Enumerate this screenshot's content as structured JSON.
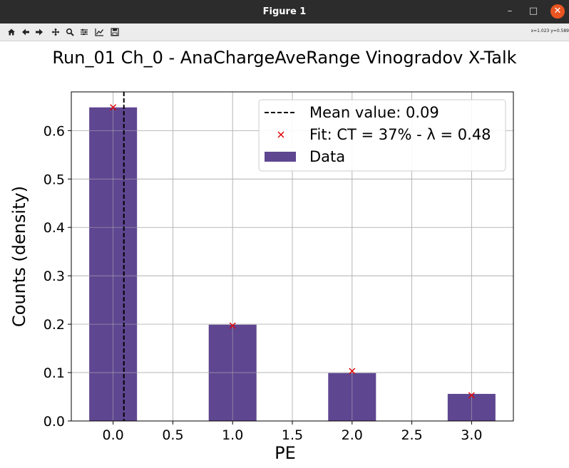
{
  "window": {
    "title": "Figure 1",
    "coords_readout": "x=1.023 y=0.589"
  },
  "toolbar": {
    "tools": [
      "home-icon",
      "back-icon",
      "forward-icon",
      "pan-icon",
      "zoom-icon",
      "configure-subplots-icon",
      "edit-axis-icon",
      "save-icon"
    ]
  },
  "colors": {
    "bar": "#5f4691",
    "fit_marker": "#e00000",
    "mean_line": "#000000",
    "grid": "#b0b0b0"
  },
  "chart_data": {
    "type": "bar",
    "title": "Run_01 Ch_0 - AnaChargeAveRange Vinogradov X-Talk",
    "xlabel": "PE",
    "ylabel": "Counts (density)",
    "xlim": [
      -0.35,
      3.35
    ],
    "ylim": [
      0,
      0.68
    ],
    "xticks": [
      0.0,
      0.5,
      1.0,
      1.5,
      2.0,
      2.5,
      3.0
    ],
    "xtick_labels": [
      "0.0",
      "0.5",
      "1.0",
      "1.5",
      "2.0",
      "2.5",
      "3.0"
    ],
    "yticks": [
      0.0,
      0.1,
      0.2,
      0.3,
      0.4,
      0.5,
      0.6
    ],
    "ytick_labels": [
      "0.0",
      "0.1",
      "0.2",
      "0.3",
      "0.4",
      "0.5",
      "0.6"
    ],
    "grid": true,
    "bar_width": 0.4,
    "series": [
      {
        "name": "Data",
        "kind": "bar",
        "x": [
          0,
          1,
          2,
          3
        ],
        "values": [
          0.648,
          0.199,
          0.099,
          0.056
        ]
      },
      {
        "name": "Fit: CT = 37% - λ = 0.48",
        "kind": "marker",
        "x": [
          0,
          1,
          2,
          3
        ],
        "values": [
          0.648,
          0.197,
          0.103,
          0.053
        ]
      }
    ],
    "mean_line": {
      "name": "Mean value: 0.09",
      "x": 0.09
    },
    "legend": {
      "placement": "top-right",
      "entries": [
        "Mean value: 0.09",
        "Fit: CT = 37% - λ = 0.48",
        "Data"
      ]
    }
  }
}
